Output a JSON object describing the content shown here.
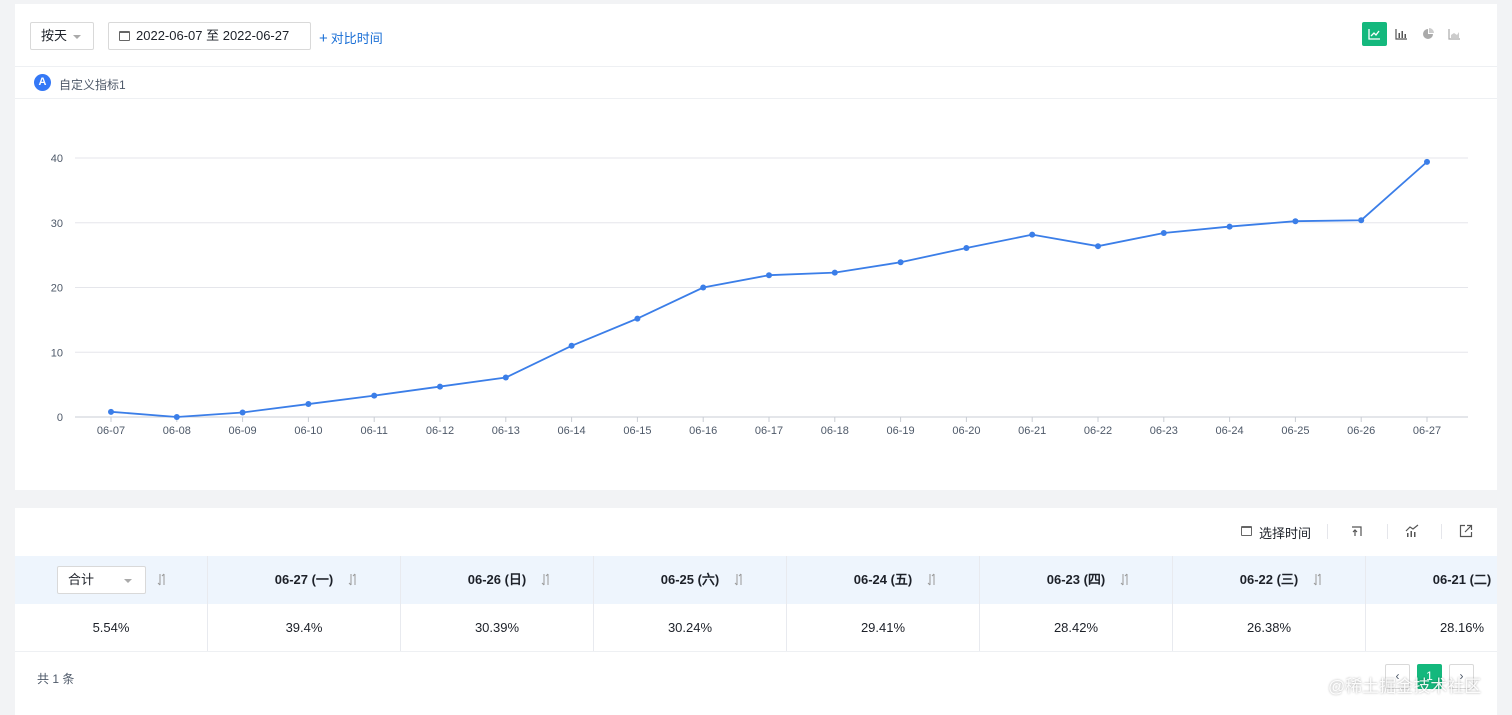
{
  "toolbar": {
    "granularity": "按天",
    "date_range": "2022-06-07 至 2022-06-27",
    "compare_label": "对比时间",
    "colors": {
      "accent": "#14b87d",
      "link": "#1a6fd6"
    },
    "view_icons": [
      "line-chart-icon",
      "bar-chart-icon",
      "pie-chart-icon",
      "area-chart-icon"
    ]
  },
  "metric": {
    "badge": "A",
    "label": "自定义指标1"
  },
  "chart_data": {
    "type": "line",
    "x": [
      "06-07",
      "06-08",
      "06-09",
      "06-10",
      "06-11",
      "06-12",
      "06-13",
      "06-14",
      "06-15",
      "06-16",
      "06-17",
      "06-18",
      "06-19",
      "06-20",
      "06-21",
      "06-22",
      "06-23",
      "06-24",
      "06-25",
      "06-26",
      "06-27"
    ],
    "series": [
      {
        "values": [
          0.8,
          0.0,
          0.7,
          2.0,
          3.3,
          4.7,
          6.1,
          11.0,
          15.2,
          20.0,
          21.9,
          22.3,
          23.9,
          26.1,
          28.16,
          26.38,
          28.42,
          29.41,
          30.24,
          30.39,
          39.4
        ],
        "color": "#3b7ee8"
      }
    ],
    "yticks": [
      0,
      10,
      20,
      30,
      40
    ],
    "ylim": [
      0,
      40
    ],
    "grid": true,
    "legend": "none"
  },
  "table_actions": {
    "select_time": "选择时间"
  },
  "table": {
    "first_col_select": "合计",
    "headers": [
      "06-27 (一)",
      "06-26 (日)",
      "06-25 (六)",
      "06-24 (五)",
      "06-23 (四)",
      "06-22 (三)",
      "06-21 (二)"
    ],
    "row": [
      "5.54%",
      "39.4%",
      "30.39%",
      "30.24%",
      "29.41%",
      "28.42%",
      "26.38%",
      "28.16%"
    ]
  },
  "footer": {
    "total": "共 1 条",
    "current_page": "1"
  },
  "watermark": "@稀土掘金技术社区"
}
